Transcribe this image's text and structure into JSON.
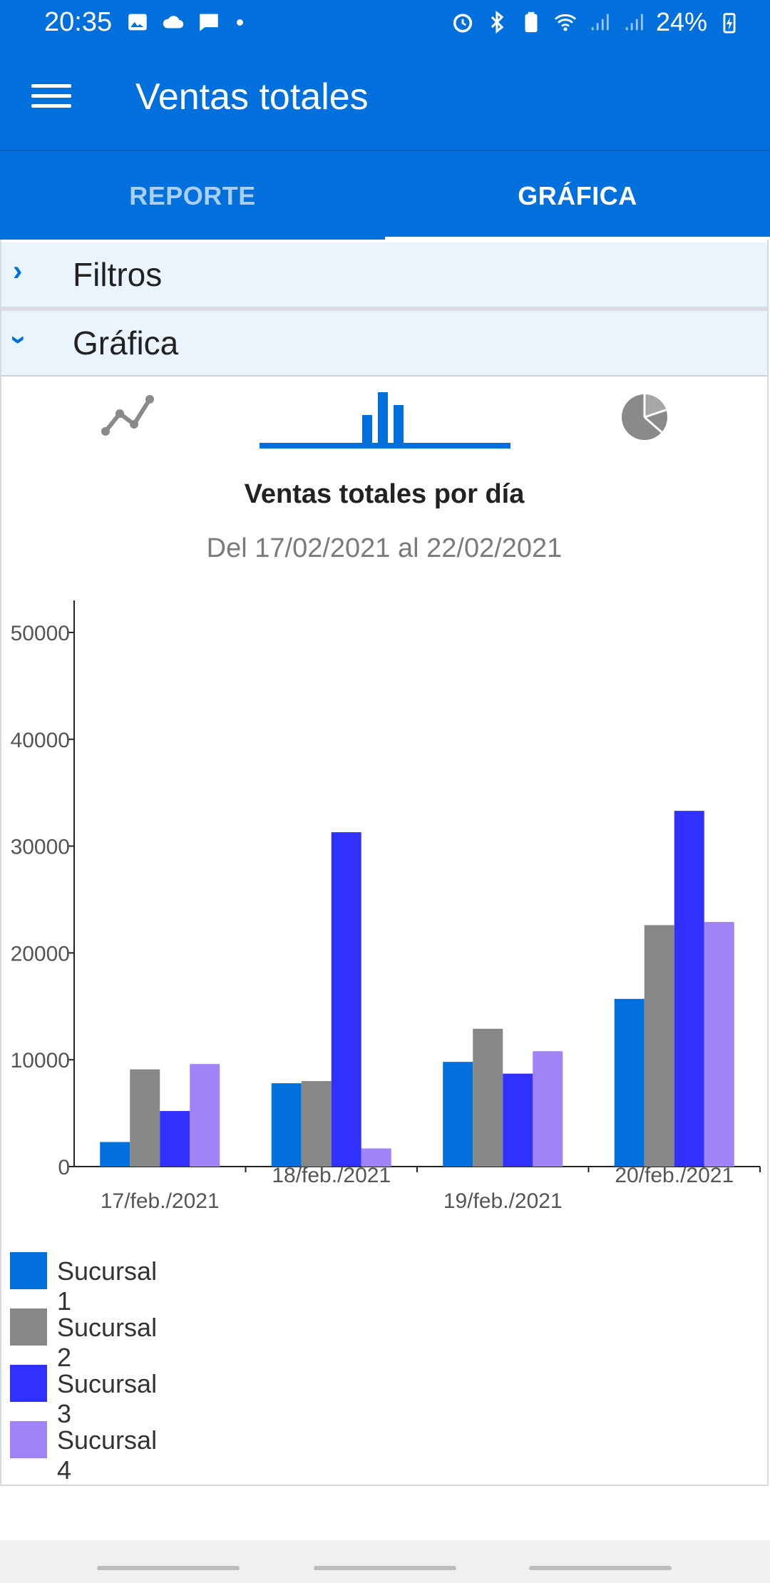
{
  "status_bar": {
    "time": "20:35",
    "battery": "24%"
  },
  "app_bar": {
    "title": "Ventas totales"
  },
  "tabs": [
    {
      "label": "REPORTE",
      "active": false
    },
    {
      "label": "GRÁFICA",
      "active": true
    }
  ],
  "sections": {
    "filtros": {
      "label": "Filtros",
      "expanded": false
    },
    "grafica": {
      "label": "Gráfica",
      "expanded": true
    }
  },
  "chart_type_selector": {
    "options": [
      "line",
      "bar",
      "pie"
    ],
    "selected": "bar"
  },
  "colors": {
    "primary": "#0270DC",
    "section_bg": "#EAF4FC",
    "inactive_tab_text": "#A9CFF6",
    "icon_gray": "#8A8A8A"
  },
  "chart_data": {
    "type": "bar",
    "title": "Ventas totales por día",
    "subtitle": "Del 17/02/2021 al 22/02/2021",
    "categories": [
      "17/feb./2021",
      "18/feb./2021",
      "19/feb./2021",
      "20/feb./2021"
    ],
    "series": [
      {
        "name": "Sucursal 1",
        "color": "#0270DC",
        "values": [
          2300,
          7800,
          9800,
          15700
        ]
      },
      {
        "name": "Sucursal 2",
        "color": "#878787",
        "values": [
          9100,
          8000,
          12900,
          22600
        ]
      },
      {
        "name": "Sucursal 3",
        "color": "#3030FF",
        "values": [
          5200,
          31300,
          8700,
          33300
        ]
      },
      {
        "name": "Sucursal 4",
        "color": "#A083F6",
        "values": [
          9600,
          1700,
          10800,
          22900
        ]
      }
    ],
    "ylim": [
      0,
      53000
    ],
    "yticks": [
      "0",
      "10000",
      "20000",
      "30000",
      "40000",
      "50000"
    ],
    "legend_position": "bottom-left",
    "grid": false
  }
}
